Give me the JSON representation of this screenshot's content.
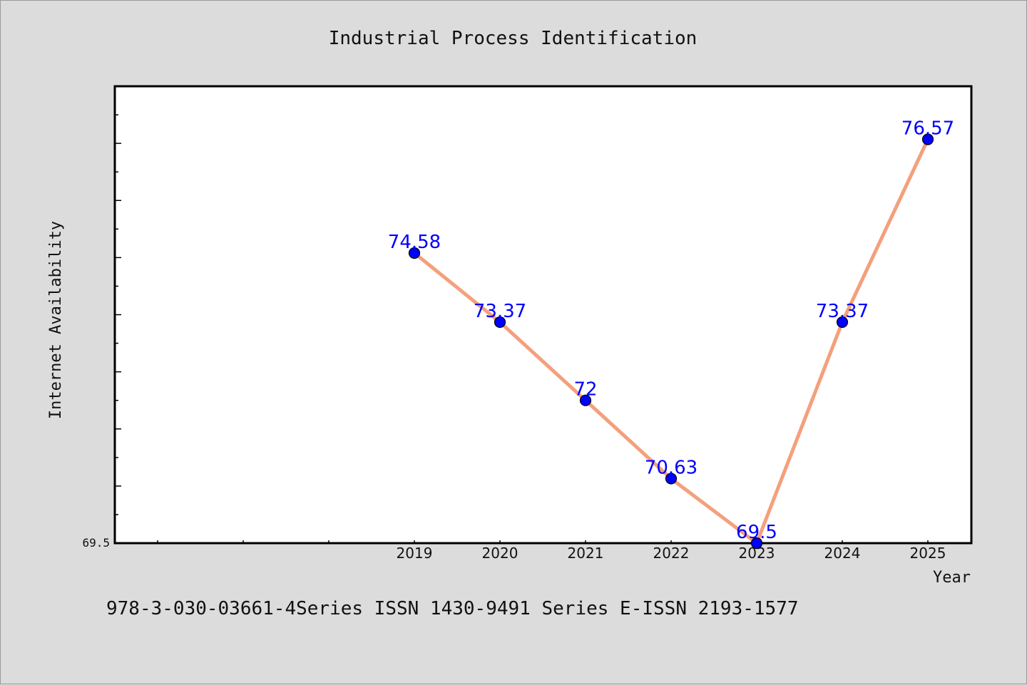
{
  "chart_data": {
    "type": "line",
    "title": "Industrial Process Identification",
    "xlabel": "Year",
    "ylabel": "Internet Availability",
    "categories": [
      "2019",
      "2020",
      "2021",
      "2022",
      "2023",
      "2024",
      "2025"
    ],
    "series": [
      {
        "values": [
          74.58,
          73.37,
          72,
          70.63,
          69.5,
          73.37,
          76.57
        ]
      }
    ],
    "data_labels": [
      "74.58",
      "73.37",
      "72",
      "70.63",
      "69.5",
      "73.37",
      "76.57"
    ],
    "y_tick_labels": [
      "69.5"
    ],
    "ylim": [
      69.5,
      77.5
    ],
    "x_domain": [
      2015.5,
      2025.5
    ],
    "grid": false,
    "line_color": "#f4a07c",
    "marker_color": "#0000ff",
    "plot_background": "#ffffff",
    "page_background": "#dcdcdc"
  },
  "footer": {
    "text": "978-3-030-03661-4Series ISSN 1430-9491 Series E-ISSN 2193-1577"
  }
}
